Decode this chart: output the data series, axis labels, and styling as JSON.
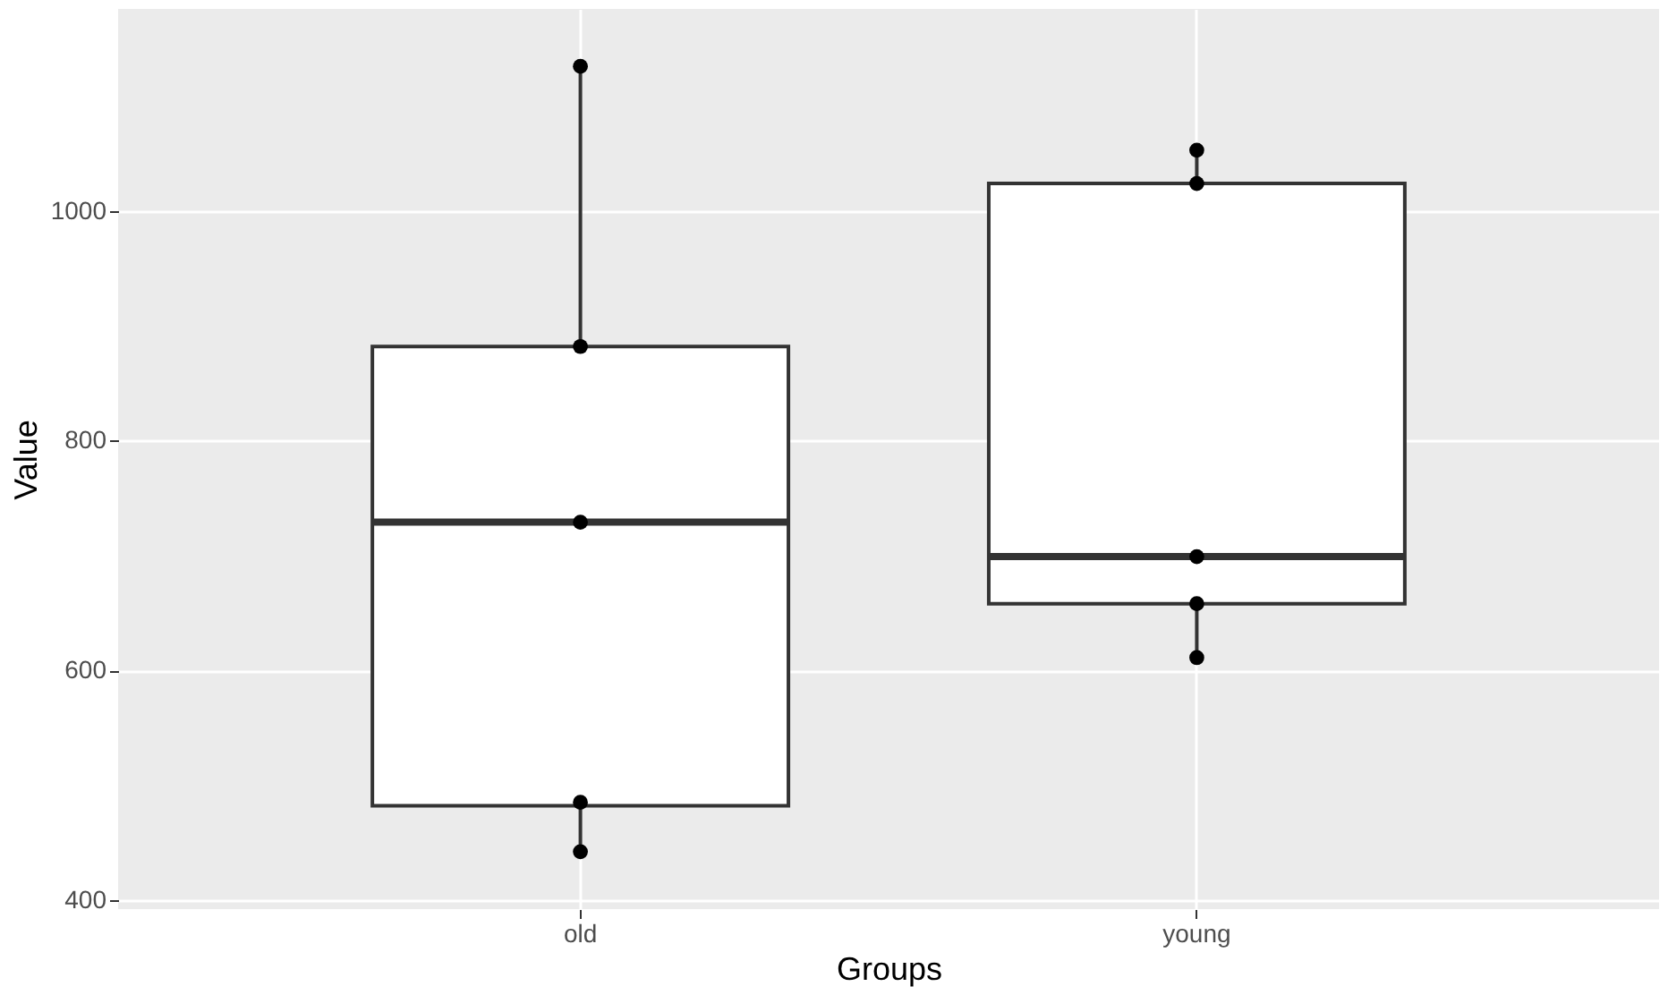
{
  "chart_data": {
    "type": "box",
    "xlabel": "Groups",
    "ylabel": "Value",
    "categories": [
      "old",
      "young"
    ],
    "boxes": [
      {
        "low": 440,
        "q1": 482,
        "median": 729,
        "q3": 882,
        "high": 1126
      },
      {
        "low": 611,
        "q1": 658,
        "median": 699,
        "q3": 1024,
        "high": 1053
      }
    ],
    "series": [
      {
        "type": "scatter",
        "color": "#000000",
        "x": [
          "old",
          "old",
          "old",
          "old",
          "old",
          "young",
          "young",
          "young",
          "young",
          "young"
        ],
        "values": [
          1126,
          882,
          729,
          485,
          442,
          1053,
          1024,
          699,
          658,
          611
        ]
      }
    ],
    "ylim": [
      392,
      1176
    ],
    "yticks": [
      400,
      600,
      800,
      1000
    ],
    "grid": true
  }
}
